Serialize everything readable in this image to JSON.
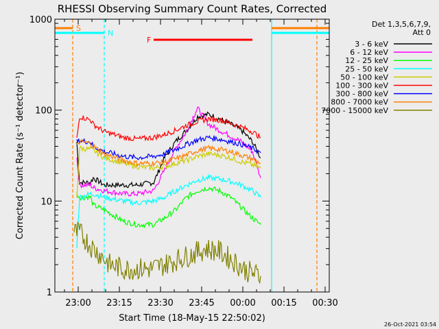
{
  "chart_data": {
    "type": "line",
    "title": "RHESSI Observing Summary Count Rates, Corrected",
    "xlabel": "Start Time (18-May-15 22:50:02)",
    "ylabel": "Corrected Count Rate (s⁻¹ detector⁻¹)",
    "yscale": "log",
    "ylim": [
      1,
      1000
    ],
    "xlim_minutes": [
      0,
      100
    ],
    "x_unit": "minutes after 22:50:02",
    "x_ticks": [
      {
        "t": 8.5,
        "label": "23:00"
      },
      {
        "t": 23.5,
        "label": "23:15"
      },
      {
        "t": 38.5,
        "label": "23:30"
      },
      {
        "t": 53.5,
        "label": "23:45"
      },
      {
        "t": 68.5,
        "label": "00:00"
      },
      {
        "t": 83.5,
        "label": "00:15"
      },
      {
        "t": 98.5,
        "label": "00:30"
      }
    ],
    "y_ticks": [
      {
        "v": 1,
        "label": "1"
      },
      {
        "v": 10,
        "label": "10"
      },
      {
        "v": 100,
        "label": "100"
      },
      {
        "v": 1000,
        "label": "1000"
      }
    ],
    "legend_header": [
      "Det 1,3,5,6,7,9,",
      "Att 0"
    ],
    "legend_position": "right",
    "timestamp": "26-Oct-2021 03:54",
    "bars": [
      {
        "label": "S",
        "color": "#ff7f00",
        "t_start": 0,
        "t_end": 6.5,
        "t_start2": 79,
        "t_end2": 100
      },
      {
        "label": "N",
        "color": "#00ffff",
        "t_start": 0,
        "t_end": 18,
        "t_start2": 79,
        "t_end2": 100
      },
      {
        "label": "F",
        "color": "#ff0000",
        "t_start": 36,
        "t_end": 72
      }
    ],
    "vlines": [
      {
        "t": 6.5,
        "color": "#ff7f00",
        "style": "dashed"
      },
      {
        "t": 18,
        "color": "#00ffff",
        "style": "dashed"
      },
      {
        "t": 79,
        "color": "#00ffff",
        "style": "solid"
      },
      {
        "t": 95.5,
        "color": "#ff7f00",
        "style": "dashed"
      }
    ],
    "series": [
      {
        "name": "3 - 6 keV",
        "color": "#000000",
        "x": [
          8,
          9,
          13,
          14,
          18,
          25,
          30,
          36,
          40,
          44,
          48,
          52,
          56,
          60,
          64,
          68,
          72,
          75
        ],
        "y": [
          45,
          16,
          16,
          18,
          15,
          15,
          15,
          16,
          30,
          45,
          60,
          85,
          90,
          80,
          70,
          60,
          45,
          30
        ]
      },
      {
        "name": "6 - 12 keV",
        "color": "#ff00ff",
        "x": [
          8,
          9,
          13,
          14,
          18,
          25,
          30,
          36,
          40,
          44,
          48,
          50,
          52,
          56,
          60,
          64,
          68,
          72,
          75
        ],
        "y": [
          30,
          15,
          15,
          14,
          13,
          12,
          12,
          13,
          22,
          38,
          58,
          80,
          105,
          70,
          60,
          52,
          45,
          35,
          18
        ]
      },
      {
        "name": "12 - 25 keV",
        "color": "#00ff00",
        "x": [
          8,
          9,
          13,
          14,
          18,
          25,
          30,
          36,
          40,
          44,
          48,
          52,
          56,
          60,
          64,
          68,
          72,
          75
        ],
        "y": [
          12,
          11,
          11,
          9,
          8,
          6,
          5.5,
          5.5,
          6.5,
          8,
          11,
          13,
          14,
          13,
          11,
          8.5,
          6.5,
          5.5
        ]
      },
      {
        "name": "25 - 50 keV",
        "color": "#00ffff",
        "x": [
          8,
          9,
          13,
          14,
          18,
          25,
          30,
          36,
          40,
          44,
          48,
          52,
          56,
          60,
          64,
          68,
          72,
          75
        ],
        "y": [
          3.2,
          11,
          12,
          12,
          11,
          10,
          9.5,
          10,
          11,
          13,
          15,
          17,
          18,
          17.5,
          16.5,
          15,
          13,
          11
        ]
      },
      {
        "name": "50 - 100 keV",
        "color": "#cccc00",
        "x": [
          8,
          9,
          13,
          14,
          18,
          25,
          30,
          36,
          40,
          44,
          48,
          52,
          56,
          60,
          64,
          68,
          72,
          75
        ],
        "y": [
          11,
          38,
          37,
          36,
          30,
          26,
          24,
          23,
          24,
          26,
          28,
          31,
          33,
          32,
          30,
          27,
          25,
          23
        ]
      },
      {
        "name": "100 - 300 keV",
        "color": "#ff0000",
        "x": [
          8,
          9,
          13,
          14,
          18,
          25,
          30,
          36,
          40,
          44,
          48,
          52,
          56,
          60,
          64,
          68,
          72,
          75
        ],
        "y": [
          48,
          85,
          78,
          70,
          58,
          50,
          48,
          50,
          54,
          60,
          68,
          75,
          80,
          78,
          72,
          65,
          58,
          50
        ]
      },
      {
        "name": "300 - 800 keV",
        "color": "#0000ff",
        "x": [
          8,
          9,
          13,
          14,
          18,
          25,
          30,
          36,
          40,
          44,
          48,
          52,
          56,
          60,
          64,
          68,
          72,
          75
        ],
        "y": [
          45,
          46,
          45,
          40,
          35,
          31,
          30,
          31,
          33,
          37,
          42,
          47,
          50,
          48,
          45,
          42,
          38,
          34
        ]
      },
      {
        "name": "800 - 7000 keV",
        "color": "#ff7f00",
        "x": [
          8,
          9,
          13,
          14,
          18,
          25,
          30,
          36,
          40,
          44,
          48,
          52,
          56,
          60,
          64,
          68,
          72,
          75
        ],
        "y": [
          40,
          45,
          43,
          40,
          33,
          28,
          26,
          26,
          27,
          29,
          32,
          36,
          38,
          37,
          35,
          32,
          29,
          26
        ]
      },
      {
        "name": "7000 - 15000 keV",
        "color": "#808000",
        "x": [
          7,
          9,
          12,
          14,
          17,
          20,
          25,
          30,
          35,
          40,
          45,
          50,
          55,
          60,
          65,
          70,
          75
        ],
        "y": [
          4.5,
          4.5,
          3.5,
          3,
          2.5,
          2,
          1.8,
          1.8,
          1.8,
          2,
          2.3,
          2.6,
          3,
          2.8,
          2.2,
          1.7,
          1.5
        ]
      }
    ]
  }
}
